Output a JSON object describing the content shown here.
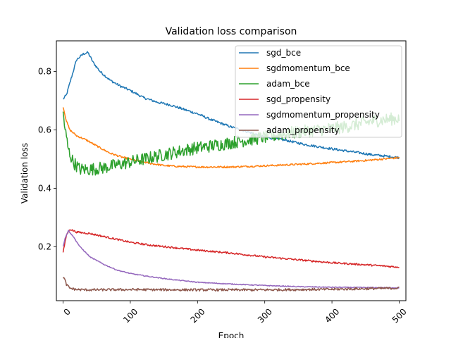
{
  "chart_data": {
    "type": "line",
    "title": "Validation loss comparison",
    "xlabel": "Epoch",
    "ylabel": "Validation loss",
    "xlim": [
      -10,
      510
    ],
    "ylim": [
      0.015,
      0.905
    ],
    "xticks": [
      0,
      100,
      200,
      300,
      400,
      500
    ],
    "yticks": [
      0.2,
      0.4,
      0.6,
      0.8
    ],
    "xtick_labels": [
      "0",
      "100",
      "200",
      "300",
      "400",
      "500"
    ],
    "ytick_labels": [
      "0.2",
      "0.4",
      "0.6",
      "0.8"
    ],
    "xtick_rotation_deg": 45,
    "grid": false,
    "legend_placement": "top-right",
    "series": [
      {
        "name": "sgd_bce",
        "color": "#1f77b4",
        "noise": 0.004,
        "x": [
          0,
          5,
          10,
          20,
          30,
          37,
          45,
          55,
          70,
          85,
          100,
          120,
          140,
          160,
          180,
          200,
          220,
          250,
          280,
          300,
          330,
          360,
          400,
          430,
          460,
          500
        ],
        "y": [
          0.705,
          0.72,
          0.76,
          0.84,
          0.86,
          0.865,
          0.83,
          0.8,
          0.77,
          0.75,
          0.735,
          0.71,
          0.695,
          0.685,
          0.67,
          0.655,
          0.635,
          0.61,
          0.59,
          0.575,
          0.565,
          0.55,
          0.535,
          0.525,
          0.515,
          0.505
        ]
      },
      {
        "name": "sgdmomentum_bce",
        "color": "#ff7f0e",
        "noise": 0.003,
        "x": [
          0,
          5,
          10,
          20,
          35,
          50,
          70,
          90,
          110,
          130,
          150,
          170,
          200,
          250,
          300,
          350,
          400,
          450,
          500
        ],
        "y": [
          0.68,
          0.63,
          0.6,
          0.58,
          0.565,
          0.545,
          0.52,
          0.505,
          0.495,
          0.485,
          0.478,
          0.475,
          0.473,
          0.473,
          0.477,
          0.482,
          0.488,
          0.495,
          0.505
        ]
      },
      {
        "name": "adam_bce",
        "color": "#2ca02c",
        "noise": 0.022,
        "x": [
          0,
          3,
          8,
          15,
          25,
          40,
          60,
          80,
          100,
          130,
          160,
          190,
          220,
          260,
          300,
          340,
          380,
          420,
          460,
          500
        ],
        "y": [
          0.66,
          0.6,
          0.53,
          0.49,
          0.465,
          0.465,
          0.47,
          0.48,
          0.49,
          0.505,
          0.52,
          0.535,
          0.545,
          0.56,
          0.575,
          0.59,
          0.6,
          0.61,
          0.63,
          0.64
        ]
      },
      {
        "name": "sgd_propensity",
        "color": "#d62728",
        "noise": 0.003,
        "x": [
          0,
          5,
          10,
          20,
          40,
          60,
          80,
          100,
          130,
          160,
          200,
          250,
          300,
          350,
          400,
          450,
          500
        ],
        "y": [
          0.18,
          0.24,
          0.26,
          0.25,
          0.245,
          0.235,
          0.225,
          0.215,
          0.205,
          0.198,
          0.188,
          0.178,
          0.165,
          0.155,
          0.145,
          0.138,
          0.13
        ]
      },
      {
        "name": "sgdmomentum_propensity",
        "color": "#9467bd",
        "noise": 0.0015,
        "x": [
          0,
          3,
          8,
          15,
          25,
          40,
          60,
          80,
          100,
          130,
          160,
          200,
          250,
          300,
          350,
          400,
          450,
          500
        ],
        "y": [
          0.2,
          0.23,
          0.255,
          0.235,
          0.2,
          0.165,
          0.14,
          0.12,
          0.108,
          0.097,
          0.088,
          0.078,
          0.072,
          0.067,
          0.063,
          0.061,
          0.06,
          0.059
        ]
      },
      {
        "name": "adam_propensity",
        "color": "#8c564b",
        "noise": 0.004,
        "x": [
          0,
          2,
          5,
          10,
          20,
          40,
          100,
          200,
          300,
          400,
          500
        ],
        "y": [
          0.095,
          0.09,
          0.07,
          0.058,
          0.053,
          0.052,
          0.053,
          0.052,
          0.052,
          0.054,
          0.058
        ]
      }
    ]
  }
}
